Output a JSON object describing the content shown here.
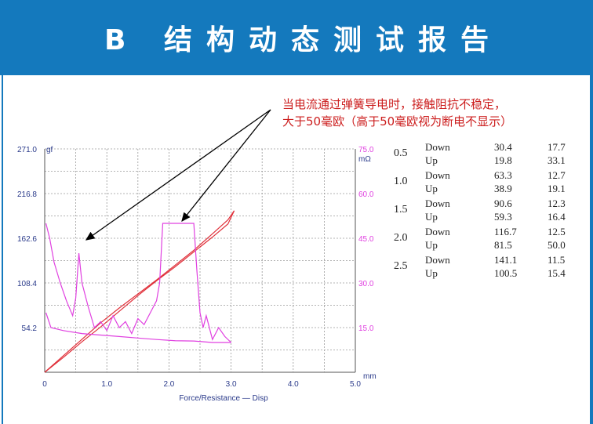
{
  "header": {
    "title": "B 结构动态测试报告"
  },
  "annotation": {
    "line1": "当电流通过弹簧导电时，接触阻抗不稳定，",
    "line2": "大于50毫欧（高于50毫欧视为断电不显示）"
  },
  "colors": {
    "header_bg": "#1479bd",
    "force": "#e0303a",
    "resistance": "#e040e0",
    "annotation": "#cc1e1e",
    "grid": "#9a9a9a"
  },
  "chart_data": {
    "type": "line",
    "xlabel": "Force/Resistance — Disp",
    "x_unit": "mm",
    "y_left_unit": "gf",
    "y_right_unit": "mΩ",
    "xlim": [
      0,
      5.0
    ],
    "ylim_left": [
      0,
      271.0
    ],
    "ylim_right": [
      0,
      75.0
    ],
    "x_ticks": [
      "0",
      "1.0",
      "2.0",
      "3.0",
      "4.0",
      "5.0"
    ],
    "y_left_ticks": [
      "54.2",
      "108.4",
      "162.6",
      "216.8",
      "271.0"
    ],
    "y_right_ticks": [
      "15.0",
      "30.0",
      "45.0",
      "60.0",
      "75.0"
    ],
    "grid": true,
    "series": [
      {
        "axis": "left",
        "x": [
          0,
          0.3,
          0.6,
          0.9,
          1.2,
          1.5,
          1.8,
          2.1,
          2.4,
          2.7,
          2.95,
          3.05
        ],
        "y": [
          0,
          18,
          37,
          55,
          74,
          93,
          111,
          128,
          146,
          164,
          180,
          196
        ]
      },
      {
        "axis": "left",
        "x": [
          3.05,
          2.95,
          2.7,
          2.4,
          2.1,
          1.8,
          1.5,
          1.2,
          0.9,
          0.6,
          0.3,
          0
        ],
        "y": [
          196,
          185,
          168,
          148,
          130,
          112,
          95,
          78,
          60,
          40,
          20,
          0
        ]
      },
      {
        "axis": "right",
        "x": [
          0.02,
          0.08,
          0.15,
          0.25,
          0.35,
          0.45,
          0.5,
          0.55,
          0.6,
          0.7,
          0.8,
          0.9,
          1.0,
          1.1,
          1.2,
          1.3,
          1.4,
          1.5,
          1.6,
          1.7,
          1.8,
          1.85,
          1.9,
          1.95,
          2.0,
          2.4,
          2.45,
          2.5,
          2.55,
          2.6,
          2.7,
          2.8,
          2.9,
          3.0
        ],
        "y": [
          50,
          45,
          37,
          30,
          24,
          19,
          25,
          40,
          30,
          22,
          15,
          17,
          14,
          19,
          15,
          17,
          13,
          18,
          16,
          20,
          24,
          30,
          50,
          50,
          50,
          50,
          34,
          20,
          15,
          19,
          11,
          15,
          12,
          10
        ]
      },
      {
        "axis": "right",
        "x": [
          3.0,
          2.7,
          2.4,
          2.1,
          1.8,
          1.5,
          1.2,
          0.9,
          0.6,
          0.3,
          0.1,
          0.02
        ],
        "y": [
          10,
          10,
          10.5,
          10.6,
          11,
          11.5,
          12,
          12.5,
          13,
          14,
          15,
          20
        ]
      }
    ]
  },
  "table": {
    "groups": [
      {
        "speed": "0.5",
        "rows": [
          {
            "label": "Down",
            "a": "30.4",
            "b": "17.7"
          },
          {
            "label": "Up",
            "a": "19.8",
            "b": "33.1"
          }
        ]
      },
      {
        "speed": "1.0",
        "rows": [
          {
            "label": "Down",
            "a": "63.3",
            "b": "12.7"
          },
          {
            "label": "Up",
            "a": "38.9",
            "b": "19.1"
          }
        ]
      },
      {
        "speed": "1.5",
        "rows": [
          {
            "label": "Down",
            "a": "90.6",
            "b": "12.3"
          },
          {
            "label": "Up",
            "a": "59.3",
            "b": "16.4"
          }
        ]
      },
      {
        "speed": "2.0",
        "rows": [
          {
            "label": "Down",
            "a": "116.7",
            "b": "12.5"
          },
          {
            "label": "Up",
            "a": "81.5",
            "b": "50.0"
          }
        ]
      },
      {
        "speed": "2.5",
        "rows": [
          {
            "label": "Down",
            "a": "141.1",
            "b": "11.5"
          },
          {
            "label": "Up",
            "a": "100.5",
            "b": "15.4"
          }
        ]
      }
    ]
  }
}
